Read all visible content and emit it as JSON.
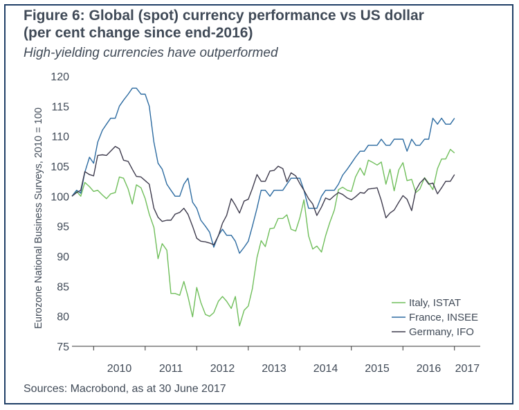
{
  "header": {
    "title_line1": "Figure 6: Global (spot) currency performance vs US dollar",
    "title_line2": "(per cent change since end-2016)",
    "subtitle": "High-yielding currencies have outperformed"
  },
  "footer": {
    "source": "Sources: Macrobond, as at 30 June 2017"
  },
  "colors": {
    "frame": "#1f3e66",
    "text": "#404a57",
    "axis": "#333333",
    "italy": "#6fbe5a",
    "france": "#2b6aa0",
    "germany": "#3d3a4c"
  },
  "chart_data": {
    "type": "line",
    "xlabel": "",
    "ylabel": "Eurozone National Business Surveys, 2010 = 100",
    "ylim": [
      75,
      120
    ],
    "yticks": [
      75,
      80,
      85,
      90,
      95,
      100,
      105,
      110,
      115,
      120
    ],
    "x_tick_labels": [
      "2010",
      "2011",
      "2012",
      "2013",
      "2014",
      "2015",
      "2016",
      "2017"
    ],
    "xlim": [
      2009.58,
      2017.5
    ],
    "legend_position": "bottom-right",
    "series": [
      {
        "name": "Italy, ISTAT",
        "color": "#6fbe5a",
        "points": [
          [
            2009.58,
            100.0
          ],
          [
            2009.67,
            100.8
          ],
          [
            2009.75,
            100.0
          ],
          [
            2009.83,
            102.3
          ],
          [
            2009.92,
            101.6
          ],
          [
            2010.0,
            100.8
          ],
          [
            2010.08,
            101.0
          ],
          [
            2010.17,
            100.2
          ],
          [
            2010.25,
            99.6
          ],
          [
            2010.33,
            100.4
          ],
          [
            2010.42,
            100.6
          ],
          [
            2010.5,
            103.2
          ],
          [
            2010.58,
            103.0
          ],
          [
            2010.67,
            101.2
          ],
          [
            2010.75,
            98.7
          ],
          [
            2010.83,
            101.9
          ],
          [
            2010.92,
            101.4
          ],
          [
            2011.0,
            99.6
          ],
          [
            2011.08,
            97.0
          ],
          [
            2011.17,
            94.8
          ],
          [
            2011.25,
            89.6
          ],
          [
            2011.33,
            92.1
          ],
          [
            2011.42,
            91.0
          ],
          [
            2011.5,
            83.8
          ],
          [
            2011.58,
            83.8
          ],
          [
            2011.67,
            83.5
          ],
          [
            2011.75,
            85.8
          ],
          [
            2011.83,
            83.3
          ],
          [
            2011.92,
            79.9
          ],
          [
            2012.0,
            84.8
          ],
          [
            2012.08,
            82.3
          ],
          [
            2012.17,
            80.3
          ],
          [
            2012.25,
            80.0
          ],
          [
            2012.33,
            80.6
          ],
          [
            2012.42,
            82.5
          ],
          [
            2012.5,
            83.3
          ],
          [
            2012.58,
            82.5
          ],
          [
            2012.67,
            81.3
          ],
          [
            2012.75,
            83.3
          ],
          [
            2012.83,
            78.4
          ],
          [
            2012.92,
            81.0
          ],
          [
            2013.0,
            81.7
          ],
          [
            2013.08,
            84.6
          ],
          [
            2013.17,
            89.8
          ],
          [
            2013.25,
            92.6
          ],
          [
            2013.33,
            91.6
          ],
          [
            2013.42,
            94.6
          ],
          [
            2013.5,
            94.7
          ],
          [
            2013.58,
            96.3
          ],
          [
            2013.67,
            96.3
          ],
          [
            2013.75,
            96.9
          ],
          [
            2013.83,
            94.5
          ],
          [
            2013.92,
            94.2
          ],
          [
            2014.0,
            96.4
          ],
          [
            2014.08,
            99.4
          ],
          [
            2014.17,
            93.4
          ],
          [
            2014.25,
            91.2
          ],
          [
            2014.33,
            91.7
          ],
          [
            2014.42,
            90.7
          ],
          [
            2014.5,
            93.4
          ],
          [
            2014.58,
            95.6
          ],
          [
            2014.67,
            97.7
          ],
          [
            2014.75,
            101.1
          ],
          [
            2014.83,
            101.5
          ],
          [
            2014.92,
            101.0
          ],
          [
            2015.0,
            100.8
          ],
          [
            2015.08,
            103.2
          ],
          [
            2015.17,
            104.7
          ],
          [
            2015.25,
            103.5
          ],
          [
            2015.33,
            106.0
          ],
          [
            2015.42,
            105.6
          ],
          [
            2015.5,
            105.2
          ],
          [
            2015.58,
            105.7
          ],
          [
            2015.67,
            102.0
          ],
          [
            2015.75,
            104.5
          ],
          [
            2015.83,
            100.9
          ],
          [
            2015.92,
            104.4
          ],
          [
            2016.0,
            105.6
          ],
          [
            2016.08,
            102.6
          ],
          [
            2016.17,
            102.8
          ],
          [
            2016.25,
            100.6
          ],
          [
            2016.33,
            101.2
          ],
          [
            2016.42,
            103.1
          ],
          [
            2016.5,
            102.2
          ],
          [
            2016.58,
            101.1
          ],
          [
            2016.67,
            104.6
          ],
          [
            2016.75,
            106.2
          ],
          [
            2016.83,
            106.2
          ],
          [
            2016.92,
            107.8
          ],
          [
            2017.0,
            107.2
          ]
        ]
      },
      {
        "name": "France, INSEE",
        "color": "#2b6aa0",
        "points": [
          [
            2009.58,
            100.0
          ],
          [
            2009.67,
            101.0
          ],
          [
            2009.75,
            100.5
          ],
          [
            2009.83,
            104.0
          ],
          [
            2009.92,
            106.5
          ],
          [
            2010.0,
            105.5
          ],
          [
            2010.08,
            109.0
          ],
          [
            2010.17,
            111.0
          ],
          [
            2010.25,
            112.0
          ],
          [
            2010.33,
            113.0
          ],
          [
            2010.42,
            113.0
          ],
          [
            2010.5,
            115.0
          ],
          [
            2010.58,
            116.0
          ],
          [
            2010.67,
            117.0
          ],
          [
            2010.75,
            118.0
          ],
          [
            2010.83,
            118.0
          ],
          [
            2010.92,
            117.0
          ],
          [
            2011.0,
            117.0
          ],
          [
            2011.08,
            115.0
          ],
          [
            2011.17,
            109.0
          ],
          [
            2011.25,
            105.5
          ],
          [
            2011.33,
            104.5
          ],
          [
            2011.42,
            102.0
          ],
          [
            2011.5,
            101.0
          ],
          [
            2011.58,
            100.0
          ],
          [
            2011.67,
            100.0
          ],
          [
            2011.75,
            102.0
          ],
          [
            2011.83,
            103.0
          ],
          [
            2011.92,
            99.0
          ],
          [
            2012.0,
            98.0
          ],
          [
            2012.08,
            96.0
          ],
          [
            2012.17,
            95.0
          ],
          [
            2012.25,
            94.0
          ],
          [
            2012.33,
            91.5
          ],
          [
            2012.42,
            93.5
          ],
          [
            2012.5,
            94.5
          ],
          [
            2012.58,
            93.5
          ],
          [
            2012.67,
            93.5
          ],
          [
            2012.75,
            92.5
          ],
          [
            2012.83,
            90.5
          ],
          [
            2012.92,
            91.5
          ],
          [
            2013.0,
            92.5
          ],
          [
            2013.08,
            95.0
          ],
          [
            2013.17,
            98.0
          ],
          [
            2013.25,
            101.0
          ],
          [
            2013.33,
            101.0
          ],
          [
            2013.42,
            100.0
          ],
          [
            2013.5,
            101.0
          ],
          [
            2013.58,
            101.0
          ],
          [
            2013.67,
            101.0
          ],
          [
            2013.75,
            102.0
          ],
          [
            2013.83,
            103.0
          ],
          [
            2013.92,
            103.0
          ],
          [
            2014.0,
            103.0
          ],
          [
            2014.08,
            101.0
          ],
          [
            2014.17,
            98.0
          ],
          [
            2014.25,
            98.0
          ],
          [
            2014.33,
            98.0
          ],
          [
            2014.42,
            100.0
          ],
          [
            2014.5,
            101.0
          ],
          [
            2014.58,
            101.0
          ],
          [
            2014.67,
            101.0
          ],
          [
            2014.75,
            102.0
          ],
          [
            2014.83,
            103.5
          ],
          [
            2014.92,
            104.5
          ],
          [
            2015.0,
            105.5
          ],
          [
            2015.08,
            106.5
          ],
          [
            2015.17,
            107.5
          ],
          [
            2015.25,
            107.5
          ],
          [
            2015.33,
            108.5
          ],
          [
            2015.42,
            108.5
          ],
          [
            2015.5,
            108.5
          ],
          [
            2015.58,
            109.5
          ],
          [
            2015.67,
            108.5
          ],
          [
            2015.75,
            108.5
          ],
          [
            2015.83,
            109.5
          ],
          [
            2015.92,
            109.5
          ],
          [
            2016.0,
            109.5
          ],
          [
            2016.08,
            107.5
          ],
          [
            2016.17,
            109.5
          ],
          [
            2016.25,
            108.5
          ],
          [
            2016.33,
            108.5
          ],
          [
            2016.42,
            109.5
          ],
          [
            2016.5,
            109.5
          ],
          [
            2016.58,
            113.0
          ],
          [
            2016.67,
            112.0
          ],
          [
            2016.75,
            113.0
          ],
          [
            2016.83,
            112.0
          ],
          [
            2016.92,
            112.0
          ],
          [
            2017.0,
            113.0
          ]
        ]
      },
      {
        "name": "Germany, IFO",
        "color": "#3d3a4c",
        "points": [
          [
            2009.58,
            100.0
          ],
          [
            2009.67,
            100.6
          ],
          [
            2009.75,
            101.0
          ],
          [
            2009.83,
            104.1
          ],
          [
            2009.92,
            103.6
          ],
          [
            2010.0,
            103.4
          ],
          [
            2010.08,
            106.8
          ],
          [
            2010.17,
            106.9
          ],
          [
            2010.25,
            106.8
          ],
          [
            2010.33,
            107.5
          ],
          [
            2010.42,
            108.3
          ],
          [
            2010.5,
            107.9
          ],
          [
            2010.58,
            106.0
          ],
          [
            2010.67,
            105.8
          ],
          [
            2010.75,
            104.5
          ],
          [
            2010.83,
            103.3
          ],
          [
            2010.92,
            103.2
          ],
          [
            2011.0,
            102.6
          ],
          [
            2011.08,
            102.0
          ],
          [
            2011.17,
            98.0
          ],
          [
            2011.25,
            96.5
          ],
          [
            2011.33,
            95.8
          ],
          [
            2011.42,
            96.0
          ],
          [
            2011.5,
            96.0
          ],
          [
            2011.58,
            97.0
          ],
          [
            2011.67,
            97.3
          ],
          [
            2011.75,
            98.0
          ],
          [
            2011.83,
            97.0
          ],
          [
            2011.92,
            95.0
          ],
          [
            2012.0,
            93.0
          ],
          [
            2012.08,
            92.5
          ],
          [
            2012.17,
            92.4
          ],
          [
            2012.25,
            92.2
          ],
          [
            2012.33,
            91.9
          ],
          [
            2012.42,
            93.4
          ],
          [
            2012.5,
            95.5
          ],
          [
            2012.58,
            96.8
          ],
          [
            2012.67,
            99.6
          ],
          [
            2012.75,
            98.5
          ],
          [
            2012.83,
            97.2
          ],
          [
            2012.92,
            99.2
          ],
          [
            2013.0,
            99.5
          ],
          [
            2013.08,
            101.3
          ],
          [
            2013.17,
            103.6
          ],
          [
            2013.25,
            102.5
          ],
          [
            2013.33,
            102.5
          ],
          [
            2013.42,
            104.2
          ],
          [
            2013.5,
            104.3
          ],
          [
            2013.58,
            105.0
          ],
          [
            2013.67,
            104.6
          ],
          [
            2013.75,
            102.4
          ],
          [
            2013.83,
            103.9
          ],
          [
            2013.92,
            103.4
          ],
          [
            2014.0,
            102.1
          ],
          [
            2014.08,
            101.0
          ],
          [
            2014.17,
            99.6
          ],
          [
            2014.25,
            98.7
          ],
          [
            2014.33,
            96.8
          ],
          [
            2014.42,
            98.2
          ],
          [
            2014.5,
            99.7
          ],
          [
            2014.58,
            99.4
          ],
          [
            2014.67,
            100.1
          ],
          [
            2014.75,
            100.6
          ],
          [
            2014.83,
            100.3
          ],
          [
            2014.92,
            99.7
          ],
          [
            2015.0,
            99.4
          ],
          [
            2015.08,
            99.9
          ],
          [
            2015.17,
            100.6
          ],
          [
            2015.25,
            100.5
          ],
          [
            2015.33,
            101.2
          ],
          [
            2015.42,
            101.3
          ],
          [
            2015.5,
            101.4
          ],
          [
            2015.58,
            99.3
          ],
          [
            2015.67,
            96.4
          ],
          [
            2015.75,
            97.2
          ],
          [
            2015.83,
            97.7
          ],
          [
            2015.92,
            99.0
          ],
          [
            2016.0,
            100.1
          ],
          [
            2016.08,
            99.5
          ],
          [
            2016.17,
            97.6
          ],
          [
            2016.25,
            101.0
          ],
          [
            2016.33,
            102.2
          ],
          [
            2016.42,
            103.0
          ],
          [
            2016.5,
            102.0
          ],
          [
            2016.58,
            102.2
          ],
          [
            2016.67,
            100.4
          ],
          [
            2016.75,
            101.4
          ],
          [
            2016.83,
            102.5
          ],
          [
            2016.92,
            102.5
          ],
          [
            2017.0,
            103.6
          ]
        ]
      }
    ]
  }
}
